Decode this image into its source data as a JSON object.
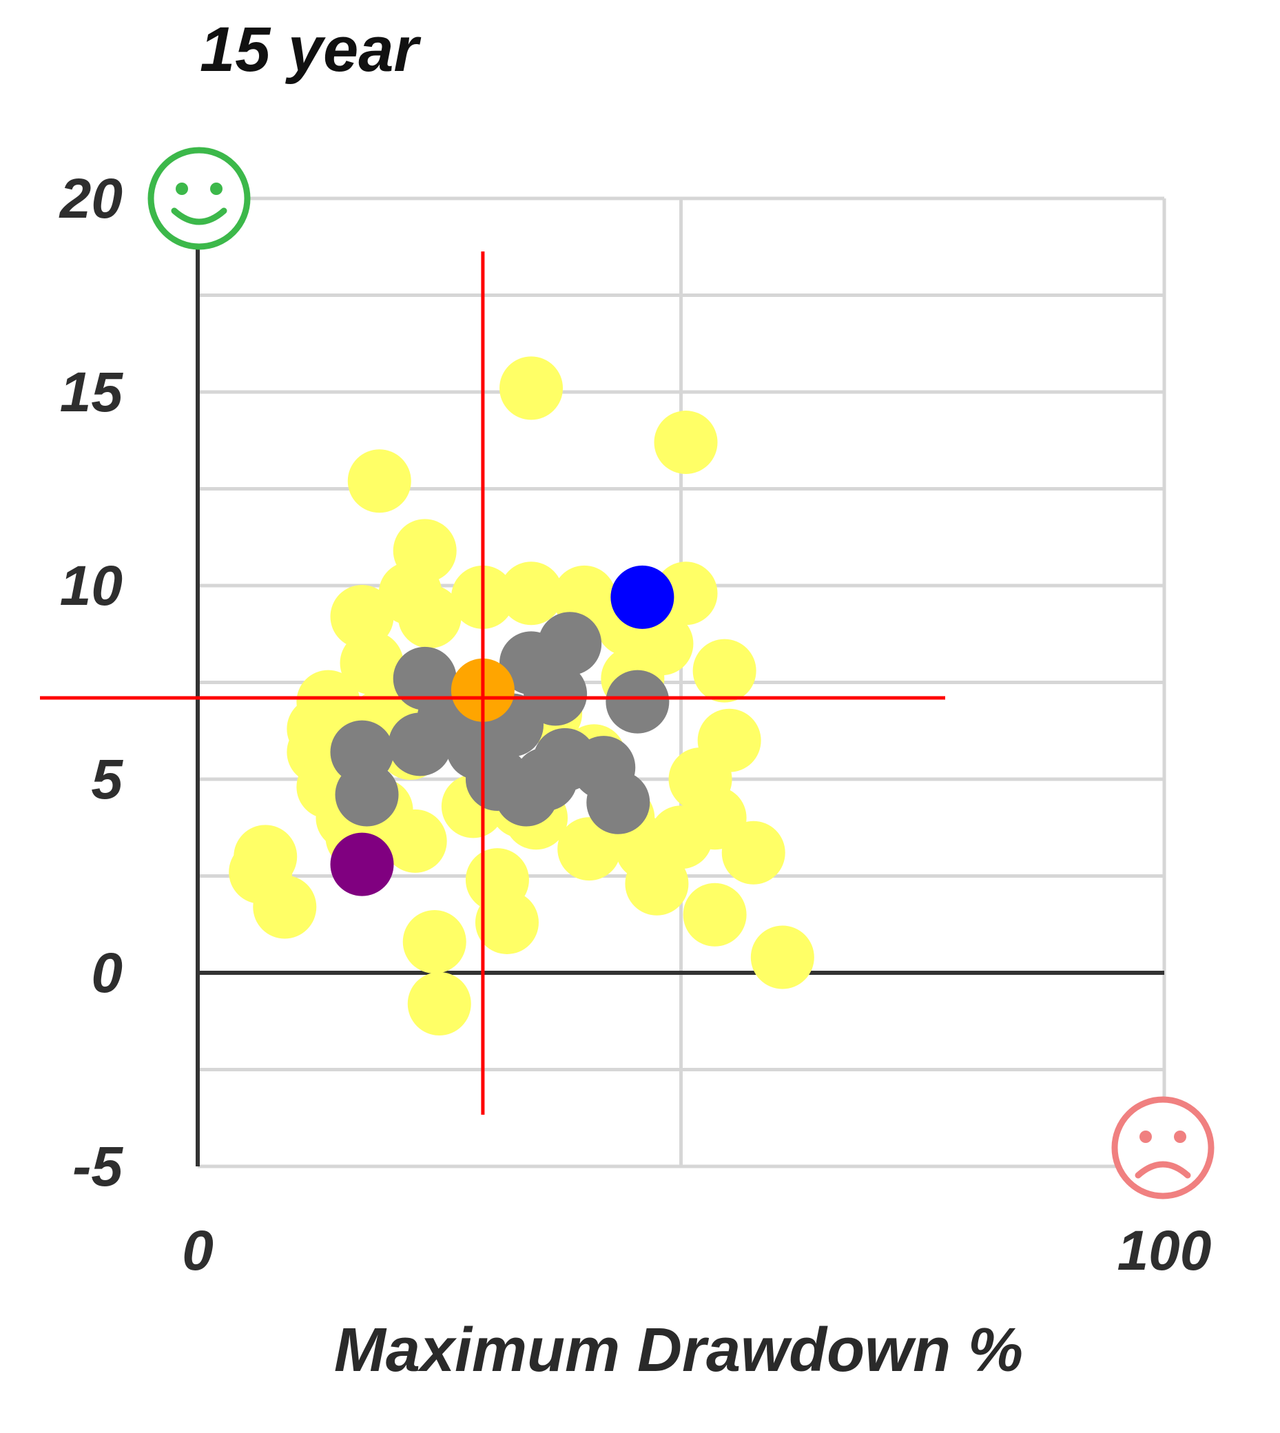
{
  "chart_data": {
    "type": "scatter",
    "title": "15 year",
    "xlabel": "Maximum Drawdown %",
    "ylabel": "",
    "xlim": [
      0,
      100
    ],
    "ylim": [
      -5,
      20
    ],
    "x_ticks": [
      "0",
      "100"
    ],
    "y_ticks": [
      "20",
      "15",
      "10",
      "5",
      "0",
      "-5"
    ],
    "grid": true,
    "corner_icons": {
      "top_left": "smiley-face-icon",
      "bottom_right": "frowning-face-icon"
    },
    "crosshair": {
      "x": 29.5,
      "y": 7.1,
      "color": "#ff0000"
    },
    "series": [
      {
        "color": "#ffff66",
        "points": [
          [
            34.5,
            15.1
          ],
          [
            50.5,
            13.7
          ],
          [
            18.8,
            12.7
          ],
          [
            23.5,
            10.9
          ],
          [
            22.0,
            9.8
          ],
          [
            29.5,
            9.7
          ],
          [
            34.5,
            9.8
          ],
          [
            40.0,
            9.7
          ],
          [
            50.5,
            9.8
          ],
          [
            17.0,
            9.2
          ],
          [
            24.0,
            9.2
          ],
          [
            44.5,
            9.0
          ],
          [
            48.0,
            8.5
          ],
          [
            18.0,
            8.0
          ],
          [
            54.5,
            7.8
          ],
          [
            13.5,
            7.0
          ],
          [
            21.0,
            7.2
          ],
          [
            45.0,
            7.6
          ],
          [
            12.5,
            6.3
          ],
          [
            19.0,
            6.5
          ],
          [
            36.5,
            6.7
          ],
          [
            55.0,
            6.0
          ],
          [
            12.5,
            5.7
          ],
          [
            22.0,
            5.8
          ],
          [
            41.0,
            5.6
          ],
          [
            13.5,
            4.8
          ],
          [
            33.5,
            4.3
          ],
          [
            52.0,
            5.0
          ],
          [
            15.5,
            4.0
          ],
          [
            19.0,
            4.2
          ],
          [
            28.5,
            4.3
          ],
          [
            35.0,
            4.0
          ],
          [
            44.0,
            4.0
          ],
          [
            53.5,
            4.0
          ],
          [
            50.0,
            3.5
          ],
          [
            16.5,
            3.5
          ],
          [
            22.5,
            3.4
          ],
          [
            40.5,
            3.2
          ],
          [
            46.5,
            3.2
          ],
          [
            57.5,
            3.1
          ],
          [
            7.0,
            3.0
          ],
          [
            6.5,
            2.6
          ],
          [
            31.0,
            2.4
          ],
          [
            47.5,
            2.3
          ],
          [
            9.0,
            1.7
          ],
          [
            53.5,
            1.5
          ],
          [
            32.0,
            1.3
          ],
          [
            24.5,
            0.8
          ],
          [
            60.5,
            0.4
          ],
          [
            25.0,
            -0.8
          ]
        ]
      },
      {
        "color": "#808080",
        "points": [
          [
            38.5,
            8.5
          ],
          [
            34.5,
            8.0
          ],
          [
            23.5,
            7.6
          ],
          [
            37.0,
            7.2
          ],
          [
            45.5,
            7.0
          ],
          [
            26.0,
            6.6
          ],
          [
            32.5,
            6.4
          ],
          [
            23.0,
            5.9
          ],
          [
            29.0,
            5.8
          ],
          [
            38.0,
            5.5
          ],
          [
            17.0,
            5.7
          ],
          [
            31.0,
            5.0
          ],
          [
            42.0,
            5.3
          ],
          [
            36.0,
            5.0
          ],
          [
            34.0,
            4.6
          ],
          [
            17.5,
            4.6
          ],
          [
            43.5,
            4.4
          ]
        ]
      },
      {
        "color": "#0000ff",
        "points": [
          [
            46.0,
            9.7
          ]
        ]
      },
      {
        "color": "#ffa500",
        "points": [
          [
            29.5,
            7.3
          ]
        ]
      },
      {
        "color": "#800080",
        "points": [
          [
            17.0,
            2.8
          ]
        ]
      }
    ]
  }
}
